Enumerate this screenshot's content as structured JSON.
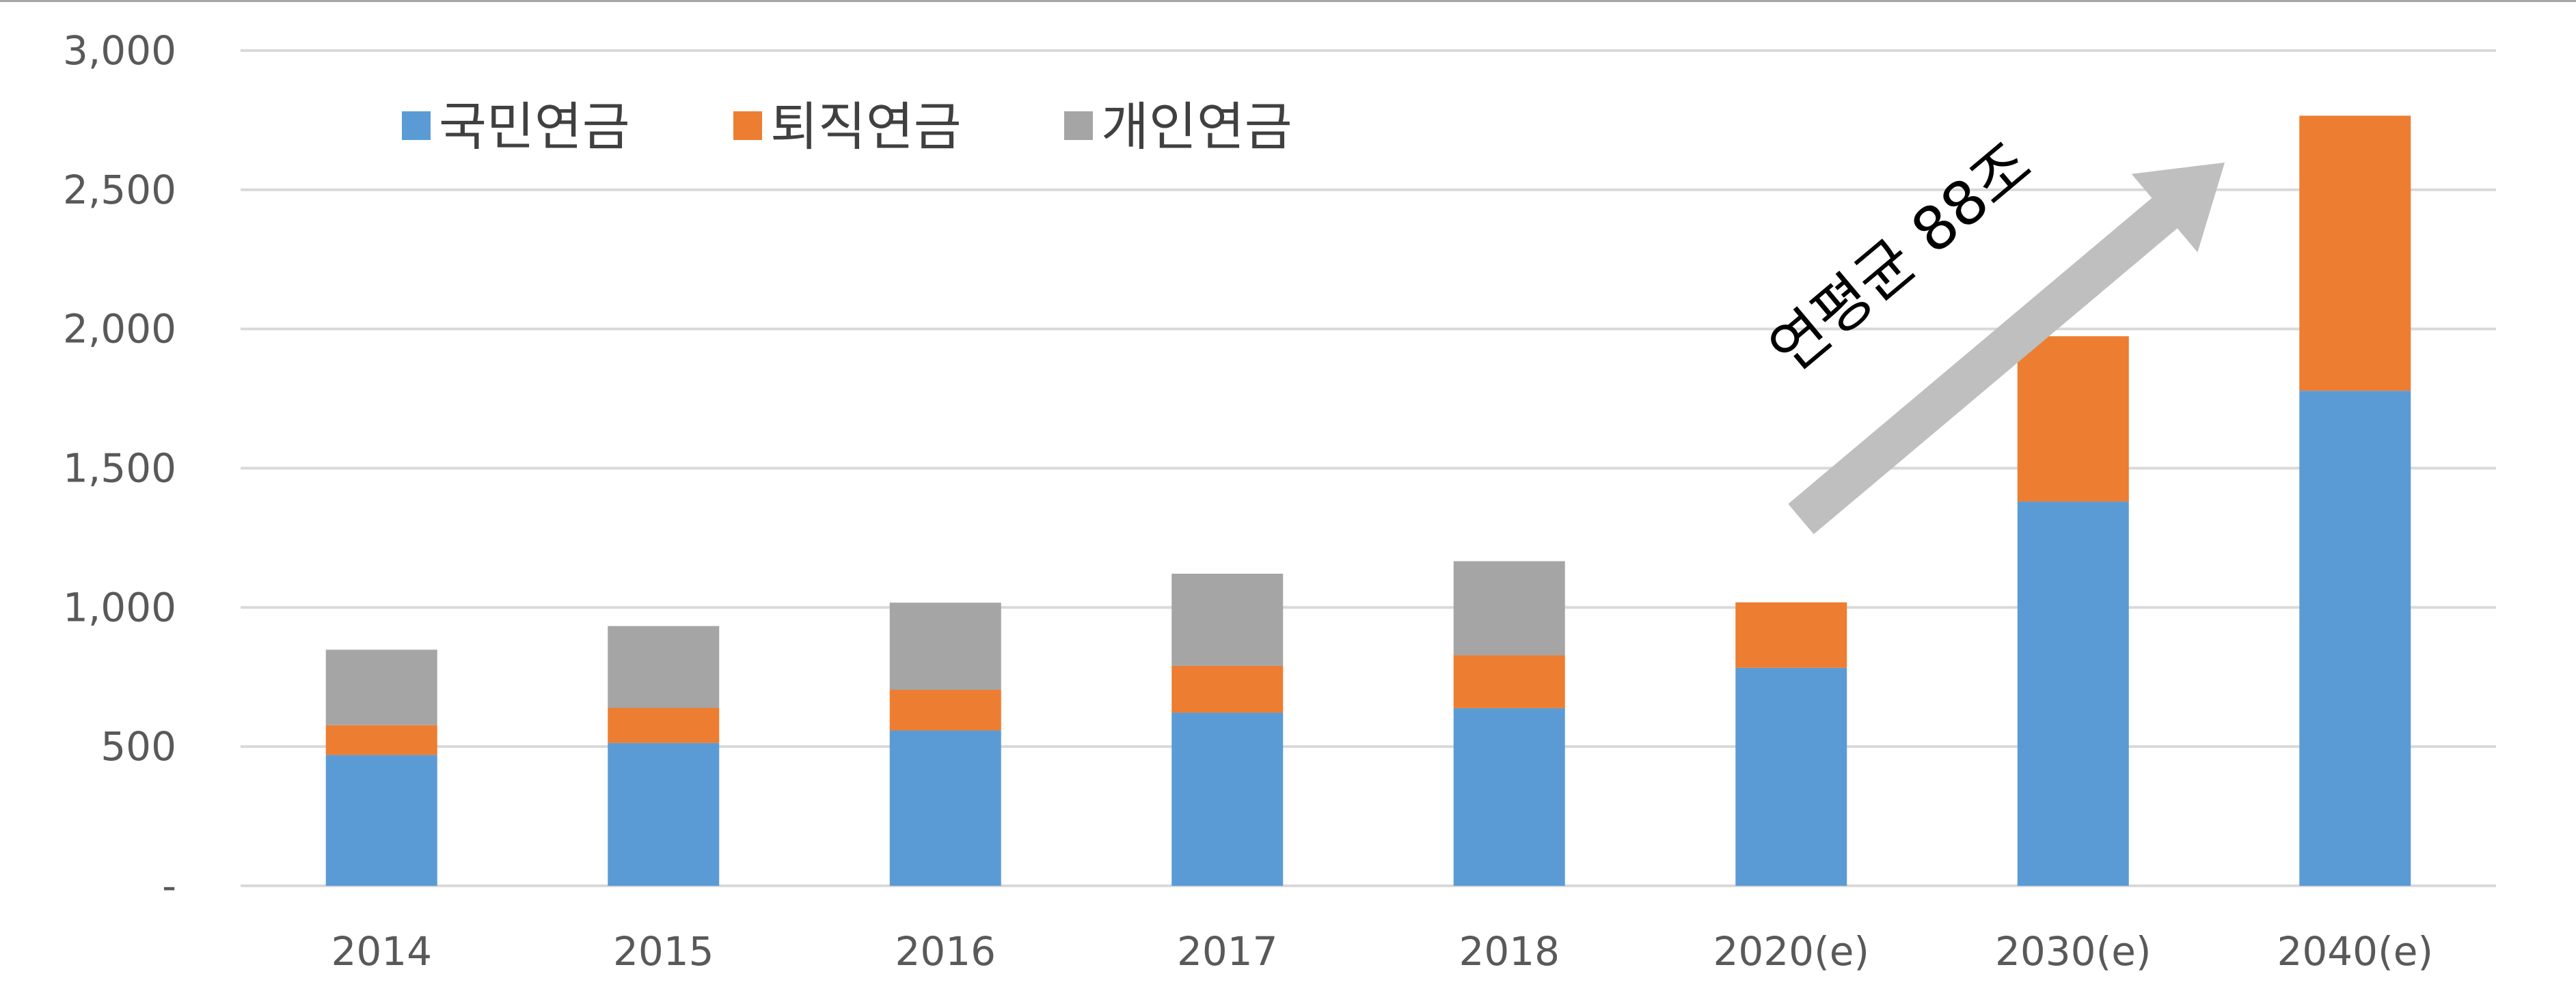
{
  "chart_data": {
    "type": "bar",
    "stacked": true,
    "categories": [
      "2014",
      "2015",
      "2016",
      "2017",
      "2018",
      "2020(e)",
      "2030(e)",
      "2040(e)"
    ],
    "series": [
      {
        "name": "국민연금",
        "color": "#5B9BD5",
        "values": [
          470,
          513,
          558,
          622,
          638,
          783,
          1380,
          1778
        ]
      },
      {
        "name": "퇴직연금",
        "color": "#ED7D31",
        "values": [
          107,
          126,
          146,
          168,
          190,
          235,
          594,
          988
        ]
      },
      {
        "name": "개인연금",
        "color": "#A5A5A5",
        "values": [
          271,
          294,
          313,
          331,
          338,
          0,
          0,
          0
        ]
      }
    ],
    "yticks": [
      "-",
      "500",
      "1,000",
      "1,500",
      "2,000",
      "2,500",
      "3,000"
    ],
    "ylim": [
      0,
      3000
    ],
    "grid": true,
    "legend_position": "top-left",
    "annotation": {
      "text": "연평균 88조",
      "color": "#BFBFBF"
    }
  }
}
